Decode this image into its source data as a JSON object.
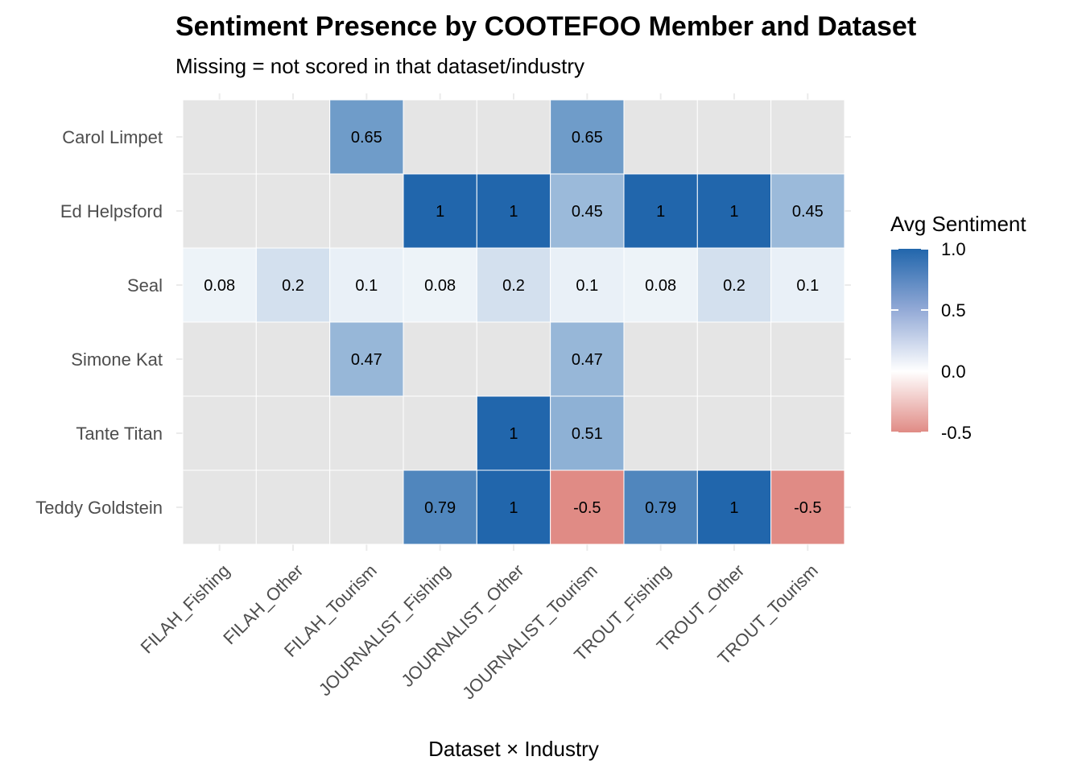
{
  "chart_data": {
    "type": "heatmap",
    "title": "Sentiment Presence by COOTEFOO Member and Dataset",
    "subtitle": "Missing = not scored in that dataset/industry",
    "xlabel": "Dataset × Industry",
    "ylabel": "",
    "x": [
      "FILAH_Fishing",
      "FILAH_Other",
      "FILAH_Tourism",
      "JOURNALIST_Fishing",
      "JOURNALIST_Other",
      "JOURNALIST_Tourism",
      "TROUT_Fishing",
      "TROUT_Other",
      "TROUT_Tourism"
    ],
    "y": [
      "Carol Limpet",
      "Ed Helpsford",
      "Seal",
      "Simone Kat",
      "Tante Titan",
      "Teddy Goldstein"
    ],
    "values": [
      [
        null,
        null,
        0.65,
        null,
        null,
        0.65,
        null,
        null,
        null
      ],
      [
        null,
        null,
        null,
        1,
        1,
        0.45,
        1,
        1,
        0.45
      ],
      [
        0.08,
        0.2,
        0.1,
        0.08,
        0.2,
        0.1,
        0.08,
        0.2,
        0.1
      ],
      [
        null,
        null,
        0.47,
        null,
        null,
        0.47,
        null,
        null,
        null
      ],
      [
        null,
        null,
        null,
        null,
        1,
        0.51,
        null,
        null,
        null
      ],
      [
        null,
        null,
        null,
        0.79,
        1,
        -0.5,
        0.79,
        1,
        -0.5
      ]
    ],
    "labels": [
      [
        null,
        null,
        "0.65",
        null,
        null,
        "0.65",
        null,
        null,
        null
      ],
      [
        null,
        null,
        null,
        "1",
        "1",
        "0.45",
        "1",
        "1",
        "0.45"
      ],
      [
        "0.08",
        "0.2",
        "0.1",
        "0.08",
        "0.2",
        "0.1",
        "0.08",
        "0.2",
        "0.1"
      ],
      [
        null,
        null,
        "0.47",
        null,
        null,
        "0.47",
        null,
        null,
        null
      ],
      [
        null,
        null,
        null,
        null,
        "1",
        "0.51",
        null,
        null,
        null
      ],
      [
        null,
        null,
        null,
        "0.79",
        "1",
        "-0.5",
        "0.79",
        "1",
        "-0.5"
      ]
    ],
    "legend": {
      "title": "Avg Sentiment",
      "placement": "right",
      "ticks": [
        "1.0",
        "0.5",
        "0.0",
        "-0.5"
      ],
      "tick_values": [
        1.0,
        0.5,
        0.0,
        -0.5
      ],
      "range": [
        -0.5,
        1.0
      ]
    },
    "colors": {
      "high": "#2166ac",
      "mid": "#ffffff",
      "low": "#e08b85",
      "missing": "#e5e5e5"
    }
  }
}
